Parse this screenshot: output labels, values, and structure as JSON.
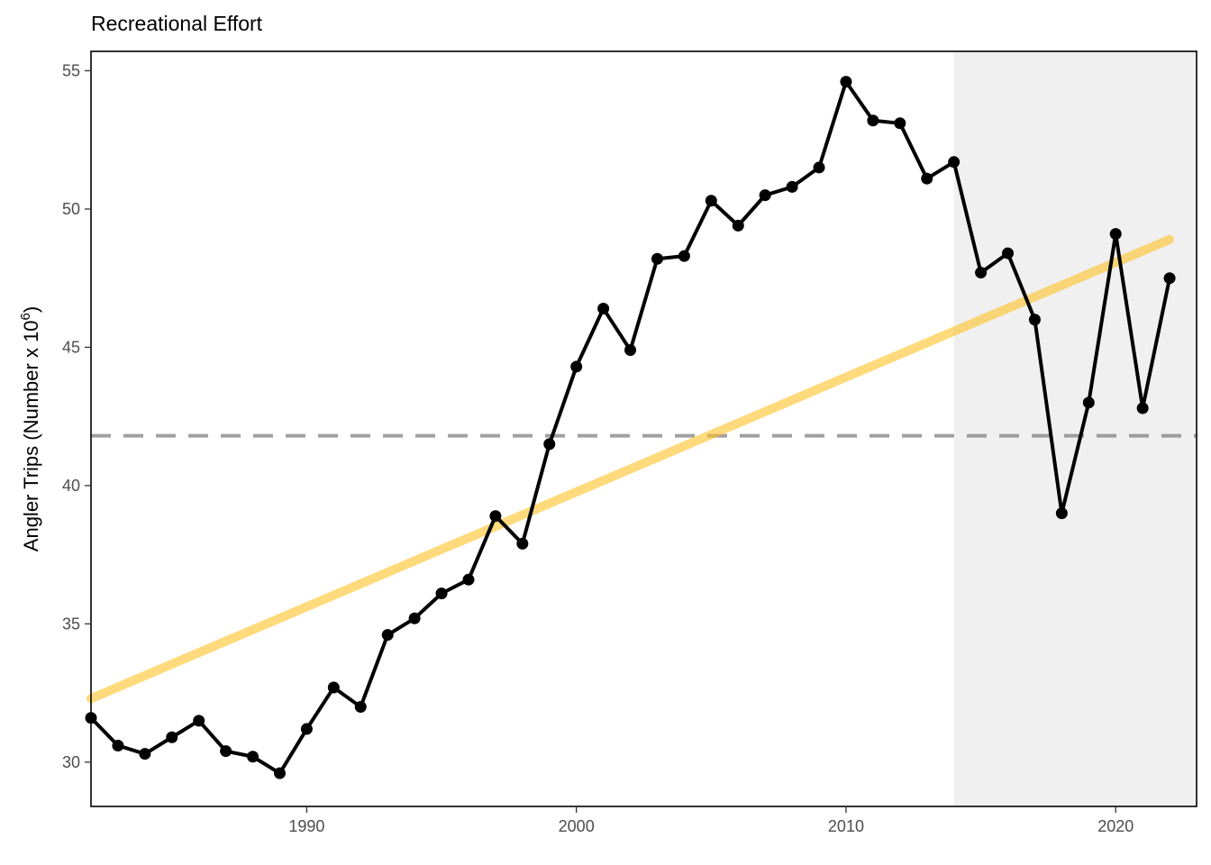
{
  "chart_data": {
    "type": "line",
    "title": "Recreational Effort",
    "xlabel": "",
    "ylabel": "Angler Trips (Number x 10",
    "ylabel_superscript": "6",
    "ylabel_close": ")",
    "xlim": [
      1982,
      2023
    ],
    "ylim": [
      28.4,
      55.7
    ],
    "x_ticks": [
      1990,
      2000,
      2010,
      2020
    ],
    "x_tick_labels": [
      "1990",
      "2000",
      "2010",
      "2020"
    ],
    "y_ticks": [
      30,
      35,
      40,
      45,
      50,
      55
    ],
    "y_tick_labels": [
      "30",
      "35",
      "40",
      "45",
      "50",
      "55"
    ],
    "grid": false,
    "series": [
      {
        "x": [
          1982,
          1983,
          1984,
          1985,
          1986,
          1987,
          1988,
          1989,
          1990,
          1991,
          1992,
          1993,
          1994,
          1995,
          1996,
          1997,
          1998,
          1999,
          2000,
          2001,
          2002,
          2003,
          2004,
          2005,
          2006,
          2007,
          2008,
          2009,
          2010,
          2011,
          2012,
          2013,
          2014,
          2015,
          2016,
          2017,
          2018,
          2019,
          2020,
          2021,
          2022
        ],
        "values": [
          31.6,
          30.6,
          30.3,
          30.9,
          31.5,
          30.4,
          30.2,
          29.6,
          31.2,
          32.7,
          32.0,
          34.6,
          35.2,
          36.1,
          36.6,
          38.9,
          37.9,
          41.5,
          44.3,
          46.4,
          44.9,
          48.2,
          48.3,
          50.3,
          49.4,
          50.5,
          50.8,
          51.5,
          54.6,
          53.2,
          53.1,
          51.1,
          51.7,
          47.7,
          48.4,
          46.0,
          39.0,
          43.0,
          49.1,
          42.8,
          47.5
        ],
        "color": "#000000"
      }
    ],
    "trend_line": {
      "x": [
        1982,
        2022
      ],
      "values": [
        32.3,
        48.9
      ],
      "color": "#FFC125"
    },
    "reference_line": {
      "y": 41.8,
      "style": "dashed",
      "color": "#808080"
    },
    "shaded_region": {
      "x_start": 2014,
      "x_end": 2023,
      "color": "#F0F0F0"
    }
  }
}
